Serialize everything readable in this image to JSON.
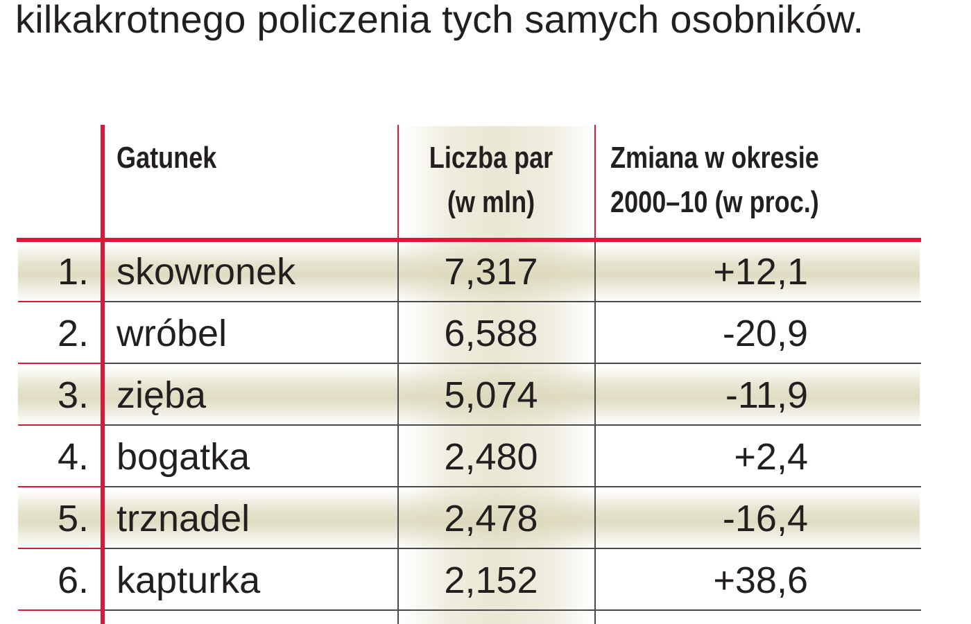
{
  "intro_text": "kilkakrotnego policzenia tych samych osobników.",
  "table": {
    "headers": {
      "species": "Gatunek",
      "pairs_line1": "Liczba par",
      "pairs_line2": "(w mln)",
      "change_line1": "Zmiana w okresie",
      "change_line2": "2000–10 (w proc.)"
    },
    "rows": [
      {
        "rank": "1.",
        "species": "skowronek",
        "pairs": "7,317",
        "change": "+12,1"
      },
      {
        "rank": "2.",
        "species": "wróbel",
        "pairs": "6,588",
        "change": "-20,9"
      },
      {
        "rank": "3.",
        "species": "zięba",
        "pairs": "5,074",
        "change": "-11,9"
      },
      {
        "rank": "4.",
        "species": "bogatka",
        "pairs": "2,480",
        "change": "+2,4"
      },
      {
        "rank": "5.",
        "species": "trznadel",
        "pairs": "2,478",
        "change": "-16,4"
      },
      {
        "rank": "6.",
        "species": "kapturka",
        "pairs": "2,152",
        "change": "+38,6"
      }
    ]
  },
  "colors": {
    "rule_red": "#d71a3a",
    "rule_gray": "#4a4a4a",
    "shade": "#dcd8bc",
    "text": "#231f20"
  }
}
